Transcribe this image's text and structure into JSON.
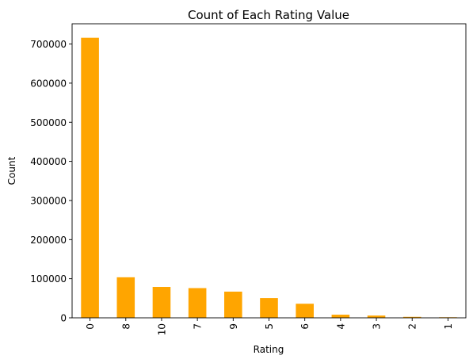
{
  "chart_data": {
    "type": "bar",
    "title": "Count of Each Rating Value",
    "xlabel": "Rating",
    "ylabel": "Count",
    "categories": [
      "0",
      "8",
      "10",
      "7",
      "9",
      "5",
      "6",
      "4",
      "3",
      "2",
      "1"
    ],
    "values": [
      716000,
      103700,
      79000,
      76000,
      67000,
      50500,
      36000,
      8000,
      5800,
      2500,
      1500
    ],
    "ylim": [
      0,
      751800
    ],
    "yticks": [
      0,
      100000,
      200000,
      300000,
      400000,
      500000,
      600000,
      700000
    ],
    "ytick_labels": [
      "0",
      "100000",
      "200000",
      "300000",
      "400000",
      "500000",
      "600000",
      "700000"
    ],
    "bar_color": "#FFA500",
    "grid": false,
    "legend": "none"
  }
}
